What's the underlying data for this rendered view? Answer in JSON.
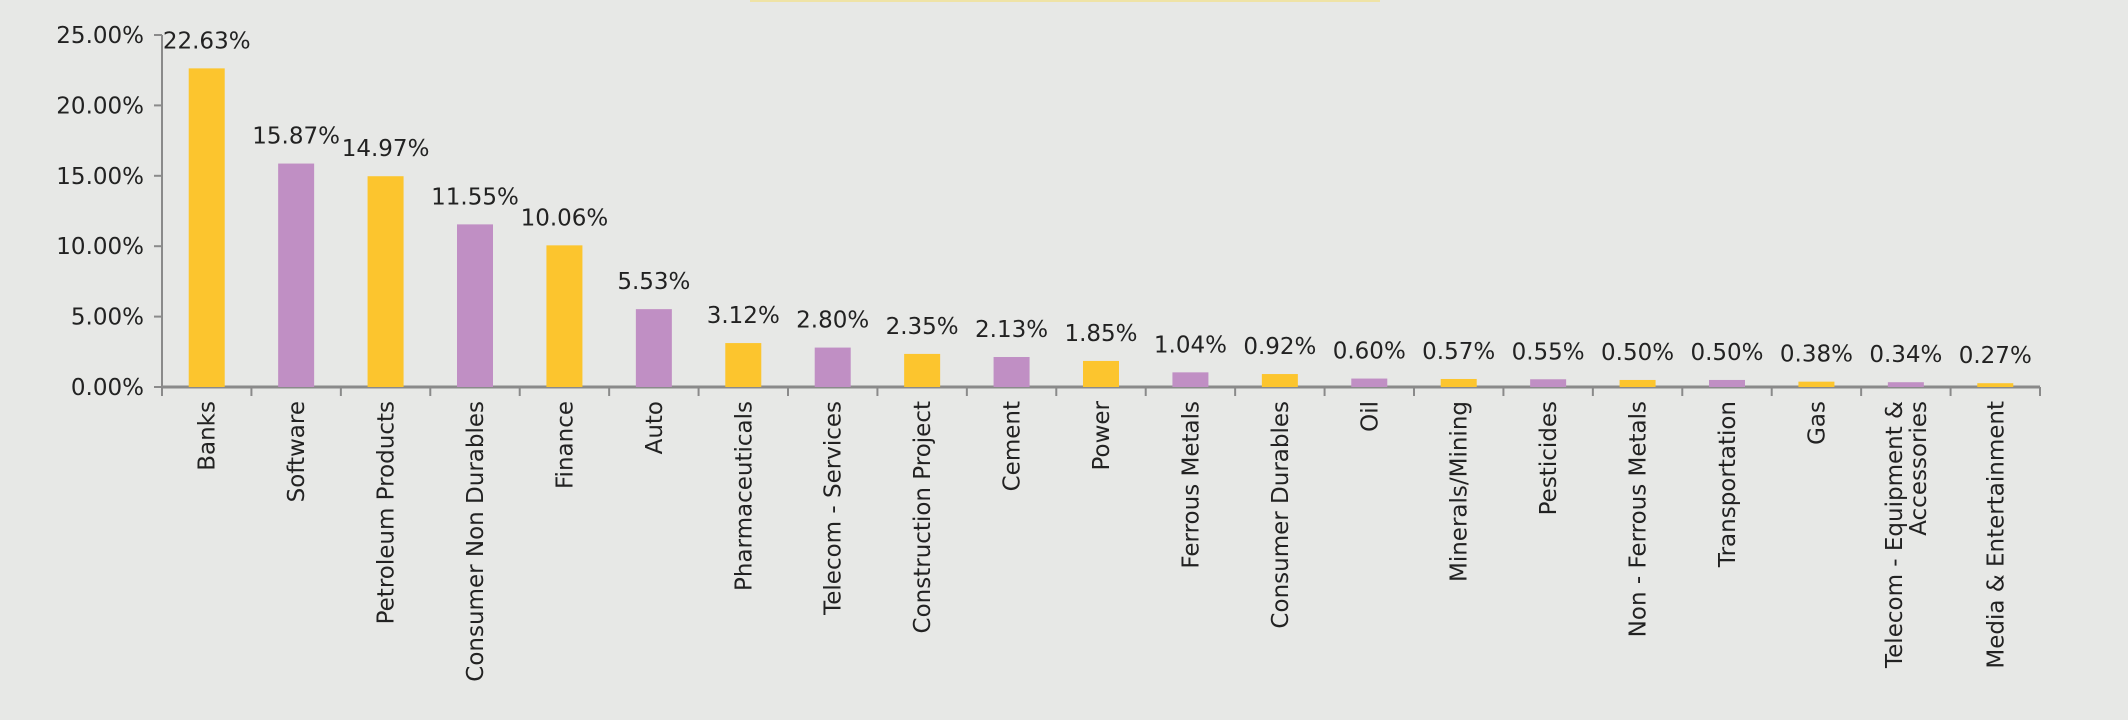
{
  "chart_data": {
    "type": "bar",
    "title": "",
    "xlabel": "",
    "ylabel": "",
    "ylim": [
      0,
      25
    ],
    "y_ticks": [
      "0.00%",
      "5.00%",
      "10.00%",
      "15.00%",
      "20.00%",
      "25.00%"
    ],
    "y_tick_values": [
      0,
      5,
      10,
      15,
      20,
      25
    ],
    "grid": false,
    "legend": "none",
    "colors": [
      "#fcc52e",
      "#c08fc4"
    ],
    "axis_color": "#8a8a8a",
    "categories": [
      "Banks",
      "Software",
      "Petroleum Products",
      "Consumer Non Durables",
      "Finance",
      "Auto",
      "Pharmaceuticals",
      "Telecom - Services",
      "Construction Project",
      "Cement",
      "Power",
      "Ferrous Metals",
      "Consumer Durables",
      "Oil",
      "Minerals/Mining",
      "Pesticides",
      "Non - Ferrous Metals",
      "Transportation",
      "Gas",
      "Telecom -  Equipment &\nAccessories",
      "Media & Entertainment"
    ],
    "values": [
      22.63,
      15.87,
      14.97,
      11.55,
      10.06,
      5.53,
      3.12,
      2.8,
      2.35,
      2.13,
      1.85,
      1.04,
      0.92,
      0.6,
      0.57,
      0.55,
      0.5,
      0.5,
      0.38,
      0.34,
      0.27
    ],
    "data_labels": [
      "22.63%",
      "15.87%",
      "14.97%",
      "11.55%",
      "10.06%",
      "5.53%",
      "3.12%",
      "2.80%",
      "2.35%",
      "2.13%",
      "1.85%",
      "1.04%",
      "0.92%",
      "0.60%",
      "0.57%",
      "0.55%",
      "0.50%",
      "0.50%",
      "0.38%",
      "0.34%",
      "0.27%"
    ]
  }
}
